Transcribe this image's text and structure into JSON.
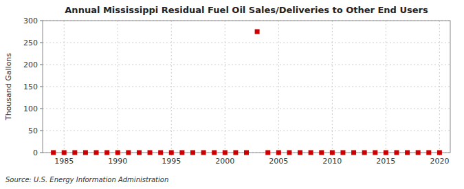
{
  "chart_data": {
    "type": "scatter",
    "title": "Annual Mississippi Residual Fuel Oil Sales/Deliveries to Other End Users",
    "y_label": "Thousand Gallons",
    "annotation": "Source: U.S. Energy Information Administration",
    "x": [
      1984,
      1985,
      1986,
      1987,
      1988,
      1989,
      1990,
      1991,
      1992,
      1993,
      1994,
      1995,
      1996,
      1997,
      1998,
      1999,
      2000,
      2001,
      2002,
      2003,
      2004,
      2005,
      2006,
      2007,
      2008,
      2009,
      2010,
      2011,
      2012,
      2013,
      2014,
      2015,
      2016,
      2017,
      2018,
      2019,
      2020
    ],
    "values": [
      0,
      0,
      0,
      0,
      0,
      0,
      0,
      0,
      0,
      0,
      0,
      0,
      0,
      0,
      0,
      0,
      0,
      0,
      0,
      275,
      0,
      0,
      0,
      0,
      0,
      0,
      0,
      0,
      0,
      0,
      0,
      0,
      0,
      0,
      0,
      0,
      0
    ],
    "color": "#cc0000",
    "marker": "square",
    "xlim": [
      1983,
      2021
    ],
    "ylim": [
      0,
      300
    ],
    "xticks": [
      1985,
      1990,
      1995,
      2000,
      2005,
      2010,
      2015,
      2020
    ],
    "yticks": [
      0,
      50,
      100,
      150,
      200,
      250,
      300
    ],
    "grid": true
  }
}
